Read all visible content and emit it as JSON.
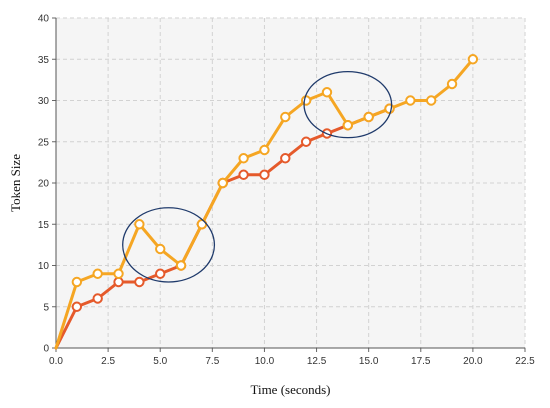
{
  "chart_data": {
    "type": "line",
    "title": "",
    "xlabel": "Time (seconds)",
    "ylabel": "Token Size",
    "xlim": [
      0,
      22.5
    ],
    "ylim": [
      0,
      40
    ],
    "x_ticks": [
      "0.0",
      "2.5",
      "5.0",
      "7.5",
      "10.0",
      "12.5",
      "15.0",
      "17.5",
      "20.0",
      "22.5"
    ],
    "y_ticks": [
      "0",
      "5",
      "10",
      "15",
      "20",
      "25",
      "30",
      "35",
      "40"
    ],
    "grid": true,
    "series": [
      {
        "color": "#f5a623",
        "x": [
          0,
          1,
          2,
          3,
          4,
          5,
          6,
          7,
          8,
          9,
          10,
          11,
          12,
          13,
          14,
          15,
          16,
          17,
          18,
          19,
          20
        ],
        "y": [
          0,
          8,
          9,
          9,
          15,
          12,
          10,
          15,
          20,
          23,
          24,
          28,
          30,
          31,
          27,
          28,
          29,
          30,
          30,
          32,
          35
        ]
      },
      {
        "color": "#e55a2b",
        "x": [
          0,
          1,
          2,
          3,
          4,
          5,
          6,
          7,
          8,
          9,
          10,
          11,
          12,
          13,
          14,
          15,
          16
        ],
        "y": [
          0,
          5,
          6,
          8,
          8,
          9,
          10,
          15,
          20,
          21,
          21,
          23,
          25,
          26,
          27,
          28,
          29
        ]
      }
    ],
    "annotations": [
      {
        "shape": "ellipse",
        "color": "#1f3a6b",
        "cx": 5.4,
        "cy": 12.5,
        "rx": 2.2,
        "ry": 4.5
      },
      {
        "shape": "ellipse",
        "color": "#1f3a6b",
        "cx": 14.0,
        "cy": 29.5,
        "rx": 2.1,
        "ry": 4.0
      }
    ]
  }
}
